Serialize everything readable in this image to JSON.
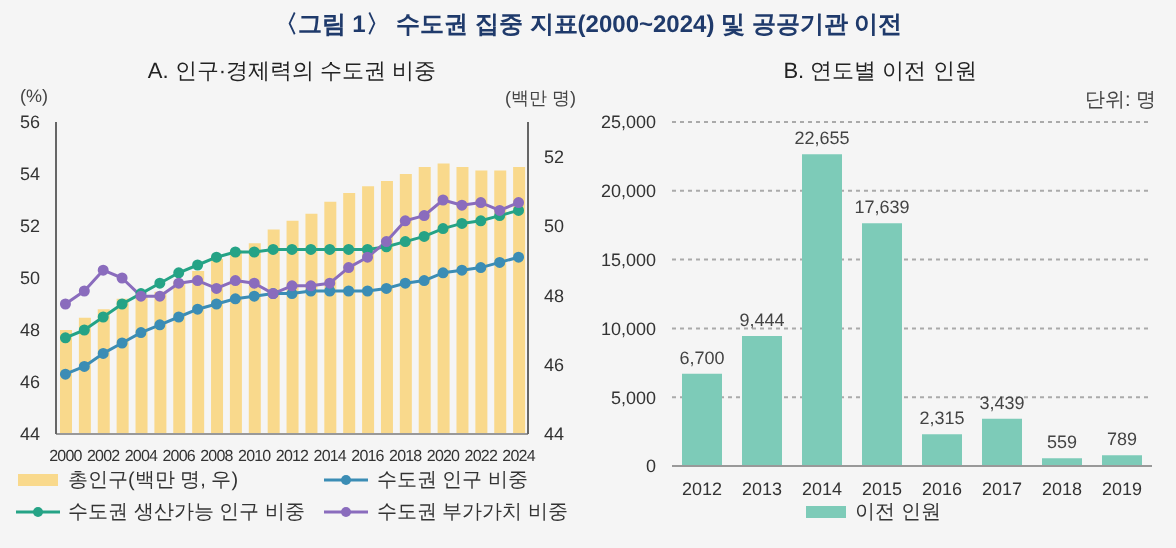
{
  "chart_data": [
    {
      "type": "bar",
      "title": "〈그림 1〉 수도권 집중 지표(2000~2024) 및 공공기관 이전",
      "subtitle": "A. 인구·경제력의 수도권 비중",
      "ylabel": "(%)",
      "y2label": "(백만 명)",
      "categories": [
        "2000",
        null,
        "2002",
        null,
        "2004",
        null,
        "2006",
        null,
        "2008",
        null,
        "2010",
        null,
        "2012",
        null,
        "2014",
        null,
        "2016",
        null,
        "2018",
        null,
        "2020",
        null,
        "2022",
        null,
        "2024"
      ],
      "series": [
        {
          "name": "총인구(백만 명, 우)",
          "type": "bar",
          "axis": "y2",
          "color": "#f9d98c",
          "values": [
            47.0,
            47.35,
            47.6,
            47.9,
            48.0,
            48.1,
            48.4,
            48.7,
            49.05,
            49.3,
            49.5,
            49.9,
            50.15,
            50.35,
            50.7,
            50.95,
            51.15,
            51.3,
            51.5,
            51.7,
            51.8,
            51.7,
            51.6,
            51.6,
            51.7
          ]
        },
        {
          "name": "수도권 인구 비중",
          "type": "line",
          "color": "#3b8db5",
          "values": [
            46.3,
            46.6,
            47.1,
            47.5,
            47.9,
            48.2,
            48.5,
            48.8,
            49.0,
            49.2,
            49.3,
            49.4,
            49.4,
            49.5,
            49.5,
            49.5,
            49.5,
            49.6,
            49.8,
            49.9,
            50.2,
            50.3,
            50.4,
            50.6,
            50.8
          ]
        },
        {
          "name": "수도권 생산가능 인구 비중",
          "type": "line",
          "color": "#25a386",
          "values": [
            47.7,
            48.0,
            48.5,
            49.0,
            49.4,
            49.8,
            50.2,
            50.5,
            50.8,
            51.0,
            51.0,
            51.1,
            51.1,
            51.1,
            51.1,
            51.1,
            51.1,
            51.2,
            51.4,
            51.6,
            51.9,
            52.1,
            52.2,
            52.4,
            52.6
          ]
        },
        {
          "name": "수도권 부가가치 비중",
          "type": "line",
          "color": "#8a6cbd",
          "values": [
            49.0,
            49.5,
            50.3,
            50.0,
            49.3,
            49.3,
            49.8,
            49.9,
            49.6,
            49.9,
            49.8,
            49.4,
            49.7,
            49.7,
            49.8,
            50.4,
            50.8,
            51.4,
            52.2,
            52.4,
            53.0,
            52.8,
            52.9,
            52.6,
            52.9
          ]
        }
      ],
      "ylim": [
        44,
        56
      ],
      "yticks": [
        44,
        46,
        48,
        50,
        52,
        54,
        56
      ],
      "y2lim": [
        44,
        53
      ],
      "y2ticks": [
        44,
        46,
        48,
        50,
        52
      ],
      "marker": "circle",
      "legend": "bottom"
    },
    {
      "type": "bar",
      "title": "B. 연도별 이전 인원",
      "annotations": [
        "단위: 명"
      ],
      "categories": [
        "2012",
        "2013",
        "2014",
        "2015",
        "2016",
        "2017",
        "2018",
        "2019"
      ],
      "series": [
        {
          "name": "이전 인원",
          "color": "#7dcbb8",
          "values": [
            6700,
            9444,
            22655,
            17639,
            2315,
            3439,
            559,
            789
          ],
          "value_labels": [
            "6,700",
            "9,444",
            "22,655",
            "17,639",
            "2,315",
            "3,439",
            "559",
            "789"
          ]
        }
      ],
      "ylim": [
        0,
        25000
      ],
      "yticks": [
        {
          "value": 0,
          "label": "0"
        },
        {
          "value": 5000,
          "label": "5,000"
        },
        {
          "value": 10000,
          "label": "10,000"
        },
        {
          "value": 15000,
          "label": "15,000"
        },
        {
          "value": 20000,
          "label": "20,000"
        },
        {
          "value": 25000,
          "label": "25,000"
        }
      ],
      "grid": "y",
      "legend": "bottom"
    }
  ]
}
